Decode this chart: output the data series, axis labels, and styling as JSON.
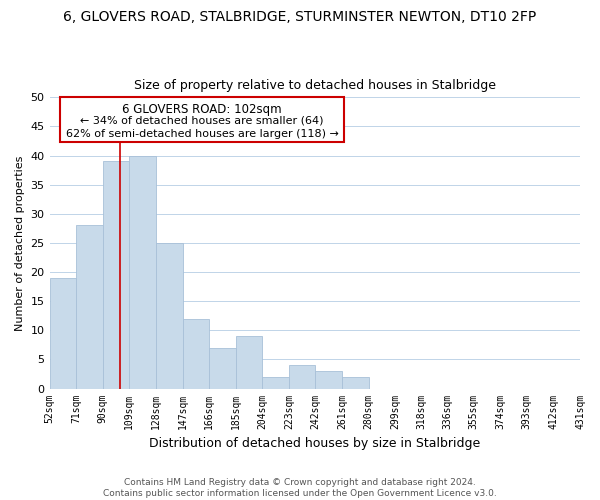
{
  "title": "6, GLOVERS ROAD, STALBRIDGE, STURMINSTER NEWTON, DT10 2FP",
  "subtitle": "Size of property relative to detached houses in Stalbridge",
  "xlabel": "Distribution of detached houses by size in Stalbridge",
  "ylabel": "Number of detached properties",
  "bar_color": "#c8daea",
  "bar_edge_color": "#a8c0d8",
  "bin_edges": [
    52,
    71,
    90,
    109,
    128,
    147,
    166,
    185,
    204,
    223,
    242,
    261,
    280,
    299,
    318,
    336,
    355,
    374,
    393,
    412,
    431
  ],
  "counts": [
    19,
    28,
    39,
    40,
    25,
    12,
    7,
    9,
    2,
    4,
    3,
    2,
    0,
    0,
    0,
    0,
    0,
    0,
    0,
    0
  ],
  "vline_x": 102,
  "vline_color": "#cc0000",
  "annotation_title": "6 GLOVERS ROAD: 102sqm",
  "annotation_line1": "← 34% of detached houses are smaller (64)",
  "annotation_line2": "62% of semi-detached houses are larger (118) →",
  "ylim": [
    0,
    50
  ],
  "yticks": [
    0,
    5,
    10,
    15,
    20,
    25,
    30,
    35,
    40,
    45,
    50
  ],
  "footer_line1": "Contains HM Land Registry data © Crown copyright and database right 2024.",
  "footer_line2": "Contains public sector information licensed under the Open Government Licence v3.0.",
  "bg_color": "#ffffff",
  "grid_color": "#c0d4e8"
}
